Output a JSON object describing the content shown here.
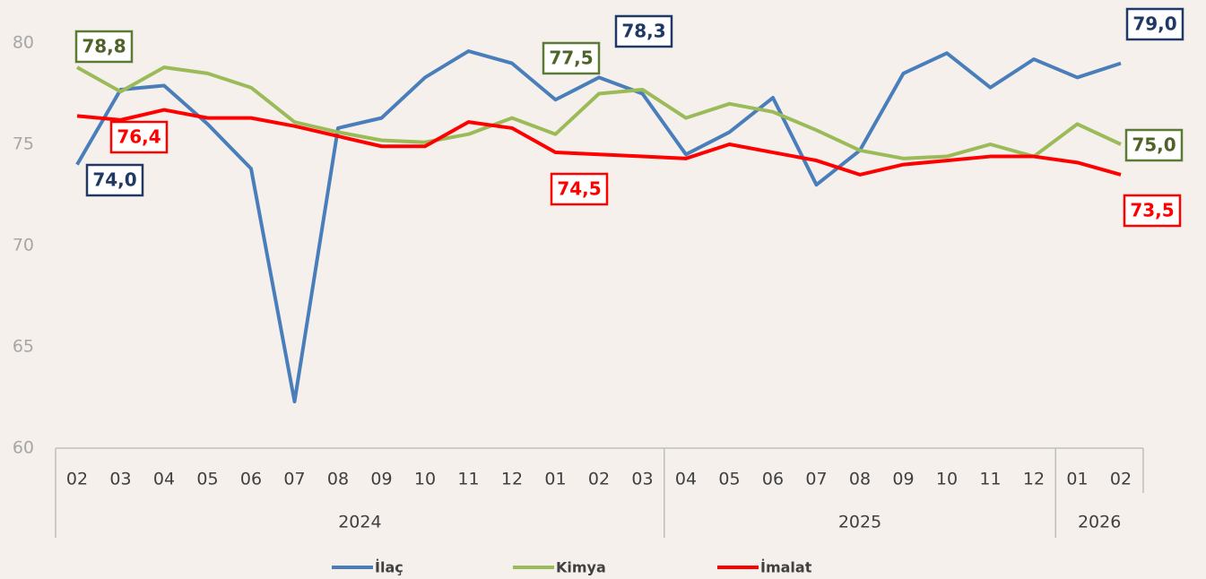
{
  "chart_data": {
    "type": "line",
    "groups": [
      {
        "label": "2024",
        "categories": [
          "02",
          "03",
          "04",
          "05",
          "06",
          "07",
          "08",
          "09",
          "10",
          "11",
          "12",
          "01",
          "02",
          "03"
        ]
      },
      {
        "label": "2025",
        "categories": [
          "04",
          "05",
          "06",
          "07",
          "08",
          "09",
          "10",
          "11",
          "12"
        ]
      },
      {
        "label": "2026",
        "categories": [
          "01",
          "02"
        ]
      }
    ],
    "ylim": [
      60,
      80
    ],
    "yticks": [
      60,
      65,
      70,
      75,
      80
    ],
    "grid": false,
    "legend": "bottom",
    "series": [
      {
        "name": "İlaç",
        "color": "#4a7ebb",
        "values": [
          74.0,
          77.7,
          77.9,
          76.0,
          73.8,
          62.3,
          75.8,
          76.3,
          78.3,
          79.6,
          79.0,
          77.2,
          78.3,
          77.5,
          74.5,
          75.6,
          77.3,
          73.0,
          74.7,
          78.5,
          79.5,
          77.8,
          79.2,
          78.3,
          79.0
        ],
        "value_labels": [
          "74,0",
          null,
          null,
          null,
          null,
          null,
          null,
          null,
          null,
          null,
          null,
          null,
          "78,3",
          null,
          null,
          null,
          null,
          null,
          null,
          null,
          null,
          null,
          null,
          null,
          "79,0"
        ]
      },
      {
        "name": "Kimya",
        "color": "#9bbb59",
        "values": [
          78.8,
          77.6,
          78.8,
          78.5,
          77.8,
          76.1,
          75.6,
          75.2,
          75.1,
          75.5,
          76.3,
          75.5,
          77.5,
          77.7,
          76.3,
          77.0,
          76.6,
          75.7,
          74.7,
          74.3,
          74.4,
          75.0,
          74.4,
          76.0,
          75.0
        ],
        "value_labels": [
          "78,8",
          null,
          null,
          null,
          null,
          null,
          null,
          null,
          null,
          null,
          null,
          null,
          "77,5",
          null,
          null,
          null,
          null,
          null,
          null,
          null,
          null,
          null,
          null,
          null,
          "75,0"
        ]
      },
      {
        "name": "İmalat",
        "color": "#ff0000",
        "values": [
          76.4,
          76.2,
          76.7,
          76.3,
          76.3,
          75.9,
          75.4,
          74.9,
          74.9,
          76.1,
          75.8,
          74.6,
          74.5,
          74.4,
          74.3,
          75.0,
          74.6,
          74.2,
          73.5,
          74.0,
          74.2,
          74.4,
          74.4,
          74.1,
          73.5
        ],
        "value_labels": [
          "76,4",
          null,
          null,
          null,
          null,
          null,
          null,
          null,
          null,
          null,
          null,
          null,
          "74,5",
          null,
          null,
          null,
          null,
          null,
          null,
          null,
          null,
          null,
          null,
          null,
          "73,5"
        ]
      }
    ]
  }
}
